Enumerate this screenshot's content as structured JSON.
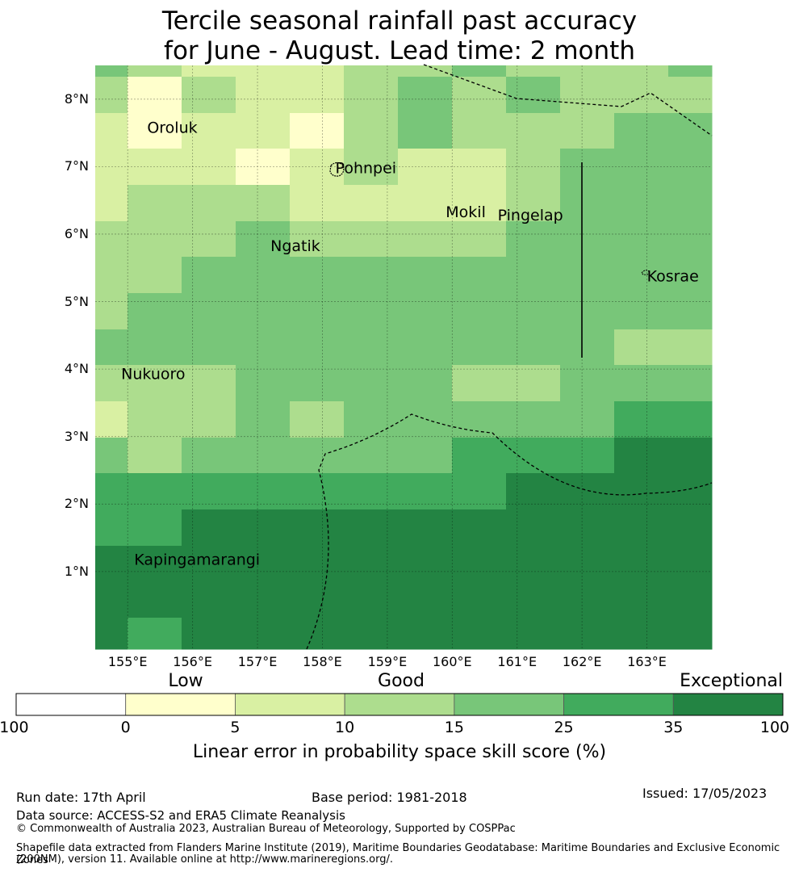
{
  "title_line1": "Tercile seasonal rainfall past accuracy",
  "title_line2": "for June - August. Lead time: 2 month",
  "map": {
    "lon_range": [
      154.5,
      164.0
    ],
    "lat_range": [
      -0.15,
      8.5
    ],
    "lon_ticks": [
      "155°E",
      "156°E",
      "157°E",
      "158°E",
      "159°E",
      "160°E",
      "161°E",
      "162°E",
      "163°E"
    ],
    "lat_ticks": [
      "1°N",
      "2°N",
      "3°N",
      "4°N",
      "5°N",
      "6°N",
      "7°N",
      "8°N"
    ],
    "places": [
      {
        "name": "Oroluk",
        "lon": 155.3,
        "lat": 7.5
      },
      {
        "name": "Pohnpei",
        "lon": 158.2,
        "lat": 6.9
      },
      {
        "name": "Mokil",
        "lon": 159.9,
        "lat": 6.25
      },
      {
        "name": "Pingelap",
        "lon": 160.7,
        "lat": 6.2
      },
      {
        "name": "Ngatik",
        "lon": 157.2,
        "lat": 5.75
      },
      {
        "name": "Kosrae",
        "lon": 163.0,
        "lat": 5.3
      },
      {
        "name": "Nukuoro",
        "lon": 154.9,
        "lat": 3.85
      },
      {
        "name": "Kapingamarangi",
        "lon": 155.1,
        "lat": 1.1
      }
    ]
  },
  "colorbar": {
    "categories": [
      "Low",
      "Good",
      "Exceptional"
    ],
    "ticks": [
      "-100",
      "0",
      "5",
      "10",
      "15",
      "25",
      "35",
      "100"
    ],
    "colors": [
      "#ffffff",
      "#ffffcc",
      "#d9f0a3",
      "#addd8e",
      "#78c679",
      "#41ab5d",
      "#238443"
    ],
    "label": "Linear error in probability space skill score (%)"
  },
  "footer": {
    "run_date": "Run date: 17th April",
    "base_period": "Base period: 1981-2018",
    "issued": "Issued: 17/05/2023",
    "data_source": "Data source: ACCESS-S2 and ERA5 Climate Reanalysis",
    "copyright": "© Commonwealth of Australia 2023, Australian Bureau of Meteorology, Supported by COSPPac",
    "shapefile_line1": "Shapefile data extracted from Flanders Marine Institute (2019), Maritime Boundaries Geodatabase: Maritime Boundaries and Exclusive Economic Zones",
    "shapefile_line2": "(200NM), version 11. Available online at http://www.marineregions.org/."
  }
}
